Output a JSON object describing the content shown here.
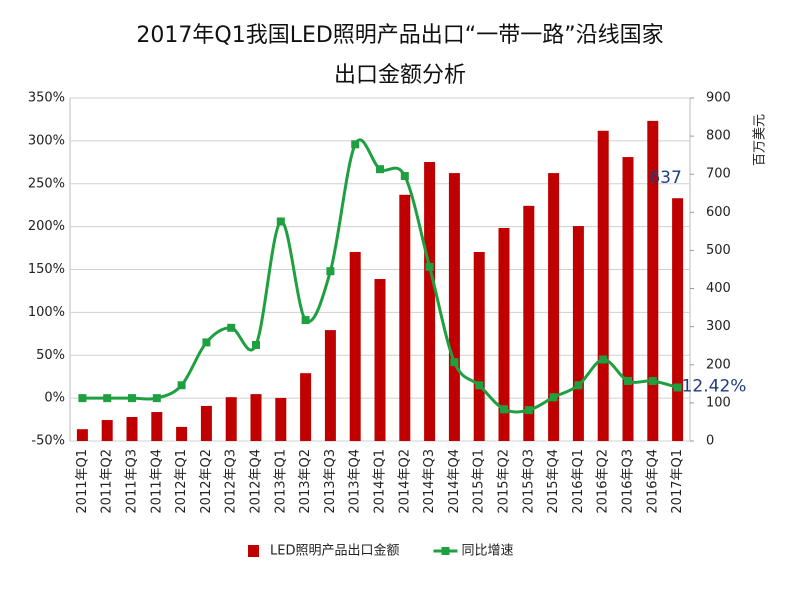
{
  "chart_data": {
    "type": "combo",
    "title": [
      "2017年Q1我国LED照明产品出口“一带一路”沿线国家",
      "出口金额分析"
    ],
    "y2_label": "百万美元",
    "categories": [
      "2011年Q1",
      "2011年Q2",
      "2011年Q3",
      "2011年Q4",
      "2012年Q1",
      "2012年Q2",
      "2012年Q3",
      "2012年Q4",
      "2013年Q1",
      "2013年Q2",
      "2013年Q3",
      "2013年Q4",
      "2014年Q1",
      "2014年Q2",
      "2014年Q3",
      "2014年Q4",
      "2015年Q1",
      "2015年Q2",
      "2015年Q3",
      "2015年Q4",
      "2016年Q1",
      "2016年Q2",
      "2016年Q3",
      "2016年Q4",
      "2017年Q1"
    ],
    "series": [
      {
        "name": "LED照明产品出口金额",
        "type": "bar",
        "axis": "y2",
        "color": "#c00000",
        "values": [
          31,
          55,
          63,
          76,
          37,
          92,
          115,
          123,
          113,
          178,
          291,
          496,
          425,
          646,
          732,
          703,
          496,
          559,
          617,
          703,
          564,
          814,
          745,
          840,
          637
        ],
        "value_labels": [
          null,
          null,
          null,
          null,
          null,
          null,
          null,
          null,
          null,
          null,
          null,
          null,
          null,
          null,
          null,
          null,
          null,
          null,
          null,
          null,
          null,
          null,
          null,
          null,
          "637"
        ]
      },
      {
        "name": "同比增速",
        "type": "line",
        "color": "#1fa040",
        "values": [
          0,
          0,
          0,
          0,
          15,
          65,
          82,
          62,
          206,
          91,
          148,
          296,
          267,
          259,
          153,
          42,
          15,
          -13,
          -14,
          1,
          15,
          45,
          20,
          20,
          12.42
        ],
        "value_labels": [
          null,
          null,
          null,
          null,
          null,
          null,
          null,
          null,
          null,
          null,
          null,
          null,
          null,
          null,
          null,
          null,
          null,
          null,
          null,
          null,
          null,
          null,
          null,
          null,
          "12.42%"
        ]
      }
    ],
    "ylim": [
      -50,
      350
    ],
    "yticks": [
      {
        "value": -50,
        "label": "-50%"
      },
      {
        "value": 0,
        "label": "0%"
      },
      {
        "value": 50,
        "label": "50%"
      },
      {
        "value": 100,
        "label": "100%"
      },
      {
        "value": 150,
        "label": "150%"
      },
      {
        "value": 200,
        "label": "200%"
      },
      {
        "value": 250,
        "label": "250%"
      },
      {
        "value": 300,
        "label": "300%"
      },
      {
        "value": 350,
        "label": "350%"
      }
    ],
    "y2lim": [
      0,
      900
    ],
    "y2ticks": [
      0,
      100,
      200,
      300,
      400,
      500,
      600,
      700,
      800,
      900
    ],
    "grid": true,
    "legend": "bottom"
  }
}
